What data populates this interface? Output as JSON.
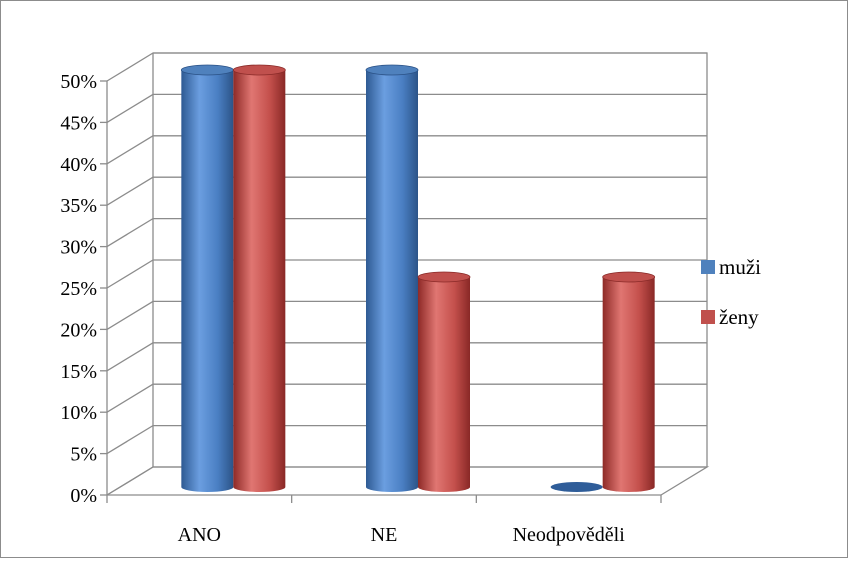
{
  "chart_data": {
    "type": "bar",
    "categories": [
      "ANO",
      "NE",
      "Neodpověděli"
    ],
    "series": [
      {
        "name": "muži",
        "values": [
          50,
          50,
          0
        ],
        "color": "#4f81bd"
      },
      {
        "name": "ženy",
        "values": [
          50,
          25,
          25
        ],
        "color": "#c0504d"
      }
    ],
    "ylim": [
      0,
      50
    ],
    "ytick_labels": [
      "0%",
      "5%",
      "10%",
      "15%",
      "20%",
      "25%",
      "30%",
      "35%",
      "40%",
      "45%",
      "50%"
    ],
    "grid": true,
    "legend": "right",
    "style": "3d-cylinder"
  }
}
